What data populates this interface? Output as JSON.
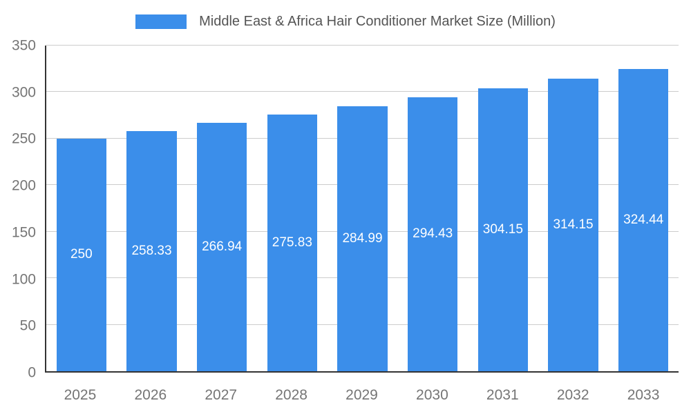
{
  "chart_data": {
    "type": "bar",
    "title": "Middle East & Africa Hair Conditioner Market Size (Million)",
    "categories": [
      "2025",
      "2026",
      "2027",
      "2028",
      "2029",
      "2030",
      "2031",
      "2032",
      "2033"
    ],
    "values": [
      250,
      258.33,
      266.94,
      275.83,
      284.99,
      294.43,
      304.15,
      314.15,
      324.44
    ],
    "value_labels": [
      "250",
      "258.33",
      "266.94",
      "275.83",
      "284.99",
      "294.43",
      "304.15",
      "314.15",
      "324.44"
    ],
    "xlabel": "",
    "ylabel": "",
    "ylim": [
      0,
      350
    ],
    "yticks": [
      0,
      50,
      100,
      150,
      200,
      250,
      300,
      350
    ],
    "grid": true,
    "legend_position": "top",
    "bar_color": "#3B8EEA",
    "bar_label_color": "#ffffff",
    "axis_text_color": "#757575",
    "gridline_color": "#cccccc",
    "title_color": "#545454"
  }
}
